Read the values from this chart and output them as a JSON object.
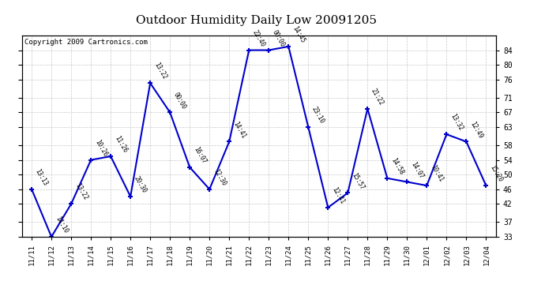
{
  "title": "Outdoor Humidity Daily Low 20091205",
  "copyright": "Copyright 2009 Cartronics.com",
  "x_labels": [
    "11/11",
    "11/12",
    "11/13",
    "11/14",
    "11/15",
    "11/16",
    "11/17",
    "11/18",
    "11/19",
    "11/20",
    "11/21",
    "11/22",
    "11/23",
    "11/24",
    "11/25",
    "11/26",
    "11/27",
    "11/28",
    "11/29",
    "11/30",
    "12/01",
    "12/02",
    "12/03",
    "12/04"
  ],
  "y_values": [
    46,
    33,
    42,
    54,
    55,
    44,
    75,
    67,
    52,
    46,
    59,
    84,
    84,
    85,
    63,
    41,
    45,
    68,
    49,
    48,
    47,
    61,
    59,
    47
  ],
  "time_labels": [
    "13:13",
    "14:10",
    "13:22",
    "10:26",
    "11:26",
    "20:30",
    "13:22",
    "00:00",
    "16:07",
    "12:30",
    "14:41",
    "22:40",
    "00:00",
    "14:45",
    "23:10",
    "12:41",
    "15:57",
    "21:22",
    "14:58",
    "14:07",
    "10:41",
    "13:32",
    "12:49",
    "15:20"
  ],
  "yticks_right": [
    33,
    37,
    42,
    46,
    50,
    54,
    58,
    63,
    67,
    71,
    76,
    80,
    84
  ],
  "line_color": "#0000cc",
  "bg_color": "#ffffff",
  "grid_color": "#bbbbbb",
  "title_fontsize": 11,
  "copyright_fontsize": 6.5
}
